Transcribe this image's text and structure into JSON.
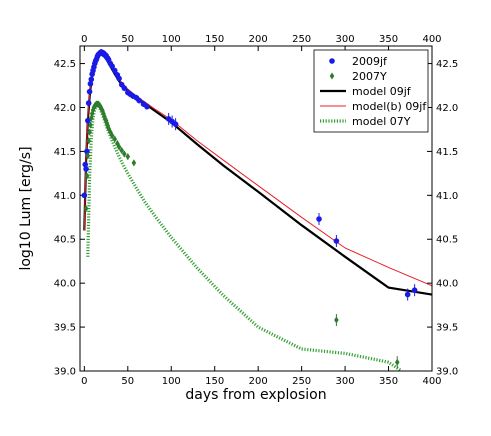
{
  "chart_data": {
    "type": "scatter",
    "xlabel": "days from explosion",
    "ylabel": "log10 Lum [erg/s]",
    "xlim": [
      -5,
      400
    ],
    "ylim": [
      39.0,
      42.7
    ],
    "x_ticks": [
      0,
      50,
      100,
      150,
      200,
      250,
      300,
      350,
      400
    ],
    "y_ticks": [
      39.0,
      39.5,
      40.0,
      40.5,
      41.0,
      41.5,
      42.0,
      42.5
    ],
    "grid": false,
    "legend_position": "top-right",
    "colors": {
      "sn2009jf": "#1a1ae6",
      "sn2007Y": "#2e7d2e",
      "model09jf": "#000000",
      "modelb09jf": "#e8202a",
      "model07Y": "#33a033"
    },
    "series": [
      {
        "name": "2009jf",
        "kind": "points",
        "marker": "circle",
        "x": [
          0,
          1,
          2,
          3,
          4,
          5,
          6,
          7,
          8,
          9,
          10,
          11,
          12,
          13,
          14,
          15,
          16,
          17,
          18,
          19,
          20,
          21,
          22,
          23,
          24,
          25,
          26,
          27,
          28,
          30,
          32,
          35,
          38,
          40,
          43,
          46,
          50,
          53,
          56,
          60,
          63,
          68,
          72,
          97,
          101,
          105,
          270,
          290,
          372,
          380
        ],
        "y": [
          41.0,
          41.35,
          41.3,
          41.5,
          41.85,
          42.05,
          42.18,
          42.27,
          42.32,
          42.38,
          42.42,
          42.46,
          42.5,
          42.53,
          42.55,
          42.58,
          42.6,
          42.61,
          42.62,
          42.63,
          42.63,
          42.62,
          42.62,
          42.6,
          42.6,
          42.59,
          42.57,
          42.56,
          42.54,
          42.5,
          42.47,
          42.42,
          42.37,
          42.33,
          42.26,
          42.22,
          42.17,
          42.15,
          42.13,
          42.11,
          42.08,
          42.04,
          42.01,
          41.87,
          41.84,
          41.81,
          40.73,
          40.48,
          39.87,
          39.92
        ]
      },
      {
        "name": "2007Y",
        "kind": "points",
        "marker": "diamond",
        "x": [
          2,
          3,
          4,
          5,
          6,
          7,
          8,
          9,
          10,
          11,
          12,
          13,
          14,
          15,
          16,
          17,
          18,
          19,
          20,
          21,
          22,
          23,
          24,
          25,
          26,
          27,
          28,
          30,
          32,
          35,
          38,
          40,
          43,
          46,
          50,
          57,
          290,
          360
        ],
        "y": [
          40.85,
          41.22,
          41.45,
          41.62,
          41.72,
          41.8,
          41.88,
          41.93,
          41.97,
          42.0,
          42.02,
          42.03,
          42.04,
          42.04,
          42.04,
          42.03,
          42.02,
          42.0,
          41.98,
          41.96,
          41.93,
          41.9,
          41.87,
          41.85,
          41.82,
          41.79,
          41.76,
          41.72,
          41.68,
          41.64,
          41.59,
          41.55,
          41.51,
          41.47,
          41.44,
          41.37,
          39.58,
          39.1
        ]
      },
      {
        "name": "model 09jf",
        "kind": "line",
        "style": "solid",
        "x": [
          0,
          2,
          4,
          6,
          8,
          10,
          12,
          14,
          16,
          18,
          20,
          23,
          26,
          30,
          35,
          40,
          45,
          50,
          55,
          60,
          70,
          80,
          100,
          130,
          160,
          200,
          250,
          300,
          350,
          400
        ],
        "y": [
          40.6,
          41.4,
          41.85,
          42.12,
          42.3,
          42.42,
          42.5,
          42.55,
          42.58,
          42.6,
          42.6,
          42.58,
          42.54,
          42.47,
          42.38,
          42.3,
          42.24,
          42.19,
          42.15,
          42.11,
          42.04,
          41.97,
          41.83,
          41.58,
          41.34,
          41.04,
          40.66,
          40.3,
          39.95,
          39.87
        ]
      },
      {
        "name": "model(b) 09jf",
        "kind": "line",
        "style": "solid",
        "x": [
          0,
          2,
          4,
          6,
          8,
          10,
          12,
          14,
          16,
          18,
          20,
          23,
          26,
          30,
          35,
          40,
          45,
          50,
          55,
          60,
          70,
          80,
          100,
          130,
          160,
          200,
          250,
          300,
          350,
          400
        ],
        "y": [
          40.6,
          41.45,
          41.9,
          42.15,
          42.32,
          42.43,
          42.51,
          42.56,
          42.59,
          42.61,
          42.61,
          42.59,
          42.55,
          42.49,
          42.4,
          42.32,
          42.26,
          42.21,
          42.17,
          42.13,
          42.06,
          41.99,
          41.86,
          41.62,
          41.4,
          41.11,
          40.75,
          40.4,
          40.18,
          39.97
        ]
      },
      {
        "name": "model 07Y",
        "kind": "line",
        "style": "dotted",
        "x": [
          4,
          6,
          8,
          10,
          12,
          14,
          16,
          18,
          20,
          23,
          26,
          30,
          35,
          40,
          45,
          50,
          60,
          70,
          80,
          100,
          130,
          160,
          200,
          250,
          300,
          350,
          365
        ],
        "y": [
          40.3,
          41.2,
          41.65,
          41.88,
          41.98,
          42.02,
          42.02,
          41.99,
          41.94,
          41.86,
          41.77,
          41.67,
          41.55,
          41.44,
          41.34,
          41.25,
          41.08,
          40.92,
          40.78,
          40.52,
          40.17,
          39.86,
          39.5,
          39.25,
          39.2,
          39.1,
          39.0
        ]
      }
    ]
  }
}
